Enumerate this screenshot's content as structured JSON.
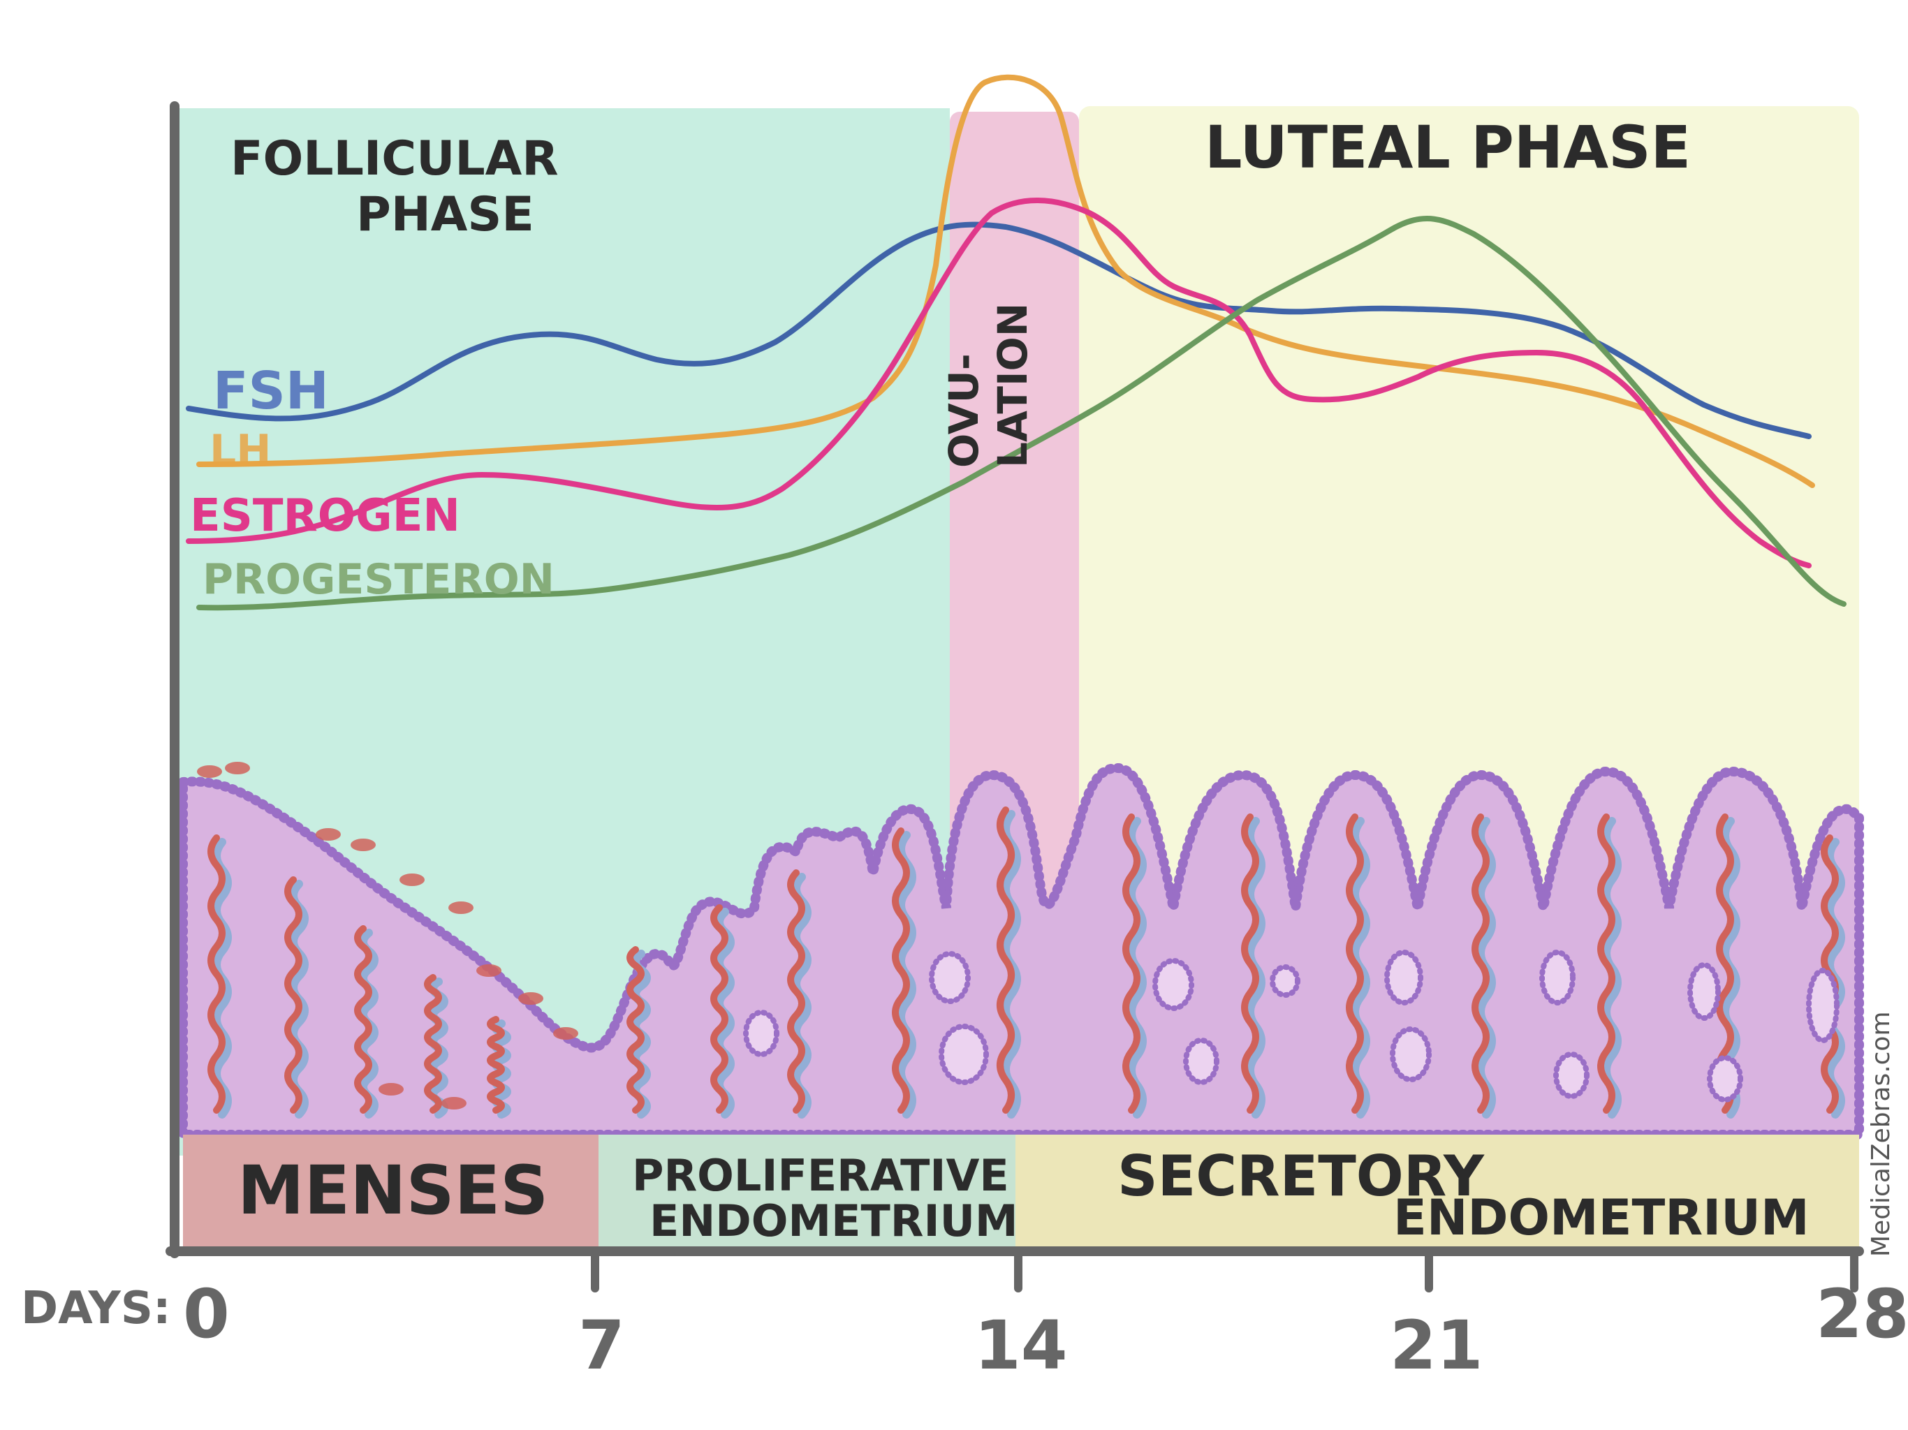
{
  "phases": {
    "follicular": [
      "FOLLICULAR",
      "PHASE"
    ],
    "ovulation": [
      "OVU-",
      "LATION"
    ],
    "luteal": "LUTEAL PHASE"
  },
  "hormones": [
    {
      "name": "FSH",
      "color": "#3f63a8"
    },
    {
      "name": "LH",
      "color": "#e8a545"
    },
    {
      "name": "ESTROGEN",
      "color": "#e0388a"
    },
    {
      "name": "PROGESTERON",
      "color": "#6a9a5e"
    }
  ],
  "endometrium": {
    "menses": "MENSES",
    "proliferative": [
      "PROLIFERATIVE",
      "ENDOMETRIUM"
    ],
    "secretory": [
      "SECRETORY",
      "ENDOMETRIUM"
    ]
  },
  "axis": {
    "prefix": "DAYS:",
    "ticks": [
      "0",
      "7",
      "14",
      "21",
      "28"
    ]
  },
  "credit": "MedicalZebras.com",
  "colors": {
    "follicular_bg": "#c8eee1",
    "ovulation_bg": "#f0c6da",
    "luteal_bg": "#f6f8da",
    "tissue": "#d9b3e0",
    "tissue_edge": "#9a6fc6",
    "vessel": "#d0625a",
    "vessel_shadow": "#92aed6",
    "menses_band": "#dba7a7",
    "proliferative_band": "#c7e3d2",
    "secretory_band": "#ece6b8",
    "axis": "#666666"
  }
}
